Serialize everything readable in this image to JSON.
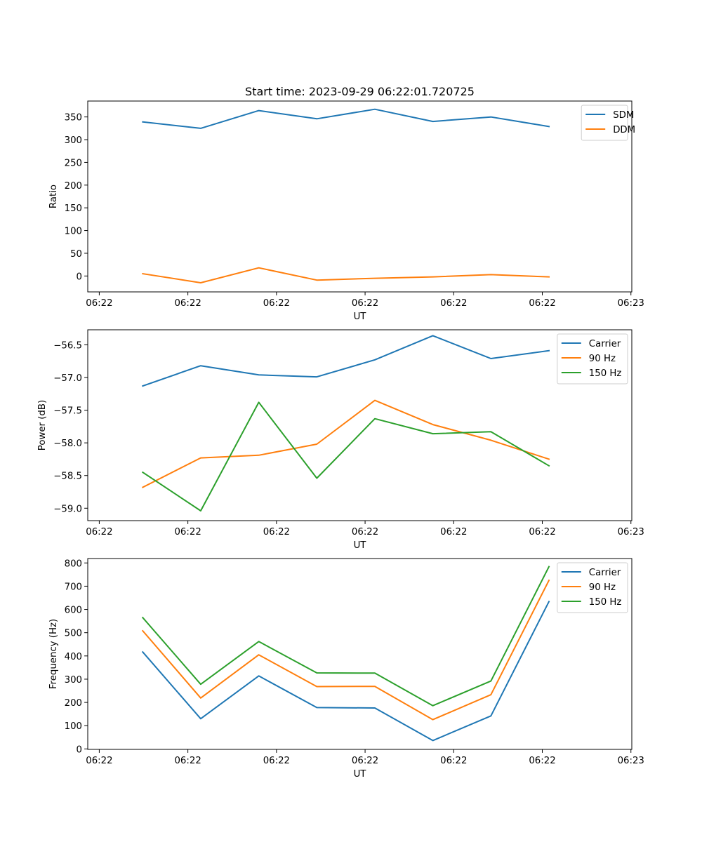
{
  "figure": {
    "title": "Start time: 2023-09-29 06:22:01.720725"
  },
  "chart_data": [
    {
      "type": "line",
      "title": "Start time: 2023-09-29 06:22:01.720725",
      "xlabel": "UT",
      "ylabel": "Ratio",
      "x_units": "seconds after 06:22:00",
      "x": [
        4.9,
        11.45,
        18.0,
        24.55,
        31.1,
        37.65,
        44.2,
        50.75
      ],
      "xlim": [
        -1.3,
        60.1
      ],
      "xticks": [
        0,
        10,
        20,
        30,
        40,
        50,
        60
      ],
      "xtick_labels": [
        "06:22",
        "06:22",
        "06:22",
        "06:22",
        "06:22",
        "06:22",
        "06:23"
      ],
      "ylim": [
        -35,
        385
      ],
      "yticks": [
        0,
        50,
        100,
        150,
        200,
        250,
        300,
        350
      ],
      "ytick_labels": [
        "0",
        "50",
        "100",
        "150",
        "200",
        "250",
        "300",
        "350"
      ],
      "grid": false,
      "legend": "top-right",
      "series": [
        {
          "name": "SDM",
          "color": "#1f77b4",
          "values": [
            339,
            325,
            364,
            346,
            367,
            340,
            350,
            329
          ]
        },
        {
          "name": "DDM",
          "color": "#ff7f0e",
          "values": [
            5,
            -15,
            18,
            -9,
            -5,
            -2,
            3,
            -2
          ]
        }
      ]
    },
    {
      "type": "line",
      "title": "",
      "xlabel": "UT",
      "ylabel": "Power (dB)",
      "x_units": "seconds after 06:22:00",
      "x": [
        4.9,
        11.45,
        18.0,
        24.55,
        31.1,
        37.65,
        44.2,
        50.75
      ],
      "xlim": [
        -1.3,
        60.1
      ],
      "xticks": [
        0,
        10,
        20,
        30,
        40,
        50,
        60
      ],
      "xtick_labels": [
        "06:22",
        "06:22",
        "06:22",
        "06:22",
        "06:22",
        "06:22",
        "06:23"
      ],
      "ylim": [
        -59.19,
        -56.27
      ],
      "yticks": [
        -59.0,
        -58.5,
        -58.0,
        -57.5,
        -57.0,
        -56.5
      ],
      "ytick_labels": [
        "−59.0",
        "−58.5",
        "−58.0",
        "−57.5",
        "−57.0",
        "−56.5"
      ],
      "grid": false,
      "legend": "top-right",
      "series": [
        {
          "name": "Carrier",
          "color": "#1f77b4",
          "values": [
            -57.13,
            -56.82,
            -56.96,
            -56.99,
            -56.73,
            -56.36,
            -56.71,
            -56.59
          ]
        },
        {
          "name": "90 Hz",
          "color": "#ff7f0e",
          "values": [
            -58.68,
            -58.23,
            -58.19,
            -58.02,
            -57.35,
            -57.72,
            -57.96,
            -58.25
          ]
        },
        {
          "name": "150 Hz",
          "color": "#2ca02c",
          "values": [
            -58.45,
            -59.04,
            -57.38,
            -58.54,
            -57.63,
            -57.86,
            -57.83,
            -58.35
          ]
        }
      ]
    },
    {
      "type": "line",
      "title": "",
      "xlabel": "UT",
      "ylabel": "Frequency (Hz)",
      "x_units": "seconds after 06:22:00",
      "x": [
        4.9,
        11.45,
        18.0,
        24.55,
        31.1,
        37.65,
        44.2,
        50.75
      ],
      "xlim": [
        -1.3,
        60.1
      ],
      "xticks": [
        0,
        10,
        20,
        30,
        40,
        50,
        60
      ],
      "xtick_labels": [
        "06:22",
        "06:22",
        "06:22",
        "06:22",
        "06:22",
        "06:22",
        "06:23"
      ],
      "ylim": [
        -2,
        819
      ],
      "yticks": [
        0,
        100,
        200,
        300,
        400,
        500,
        600,
        700,
        800
      ],
      "ytick_labels": [
        "0",
        "100",
        "200",
        "300",
        "400",
        "500",
        "600",
        "700",
        "800"
      ],
      "grid": false,
      "legend": "top-right",
      "series": [
        {
          "name": "Carrier",
          "color": "#1f77b4",
          "values": [
            417,
            130,
            314,
            178,
            176,
            36,
            142,
            634
          ]
        },
        {
          "name": "90 Hz",
          "color": "#ff7f0e",
          "values": [
            508,
            219,
            405,
            268,
            269,
            126,
            233,
            725
          ]
        },
        {
          "name": "150 Hz",
          "color": "#2ca02c",
          "values": [
            565,
            278,
            462,
            327,
            326,
            186,
            292,
            784
          ]
        }
      ]
    }
  ]
}
